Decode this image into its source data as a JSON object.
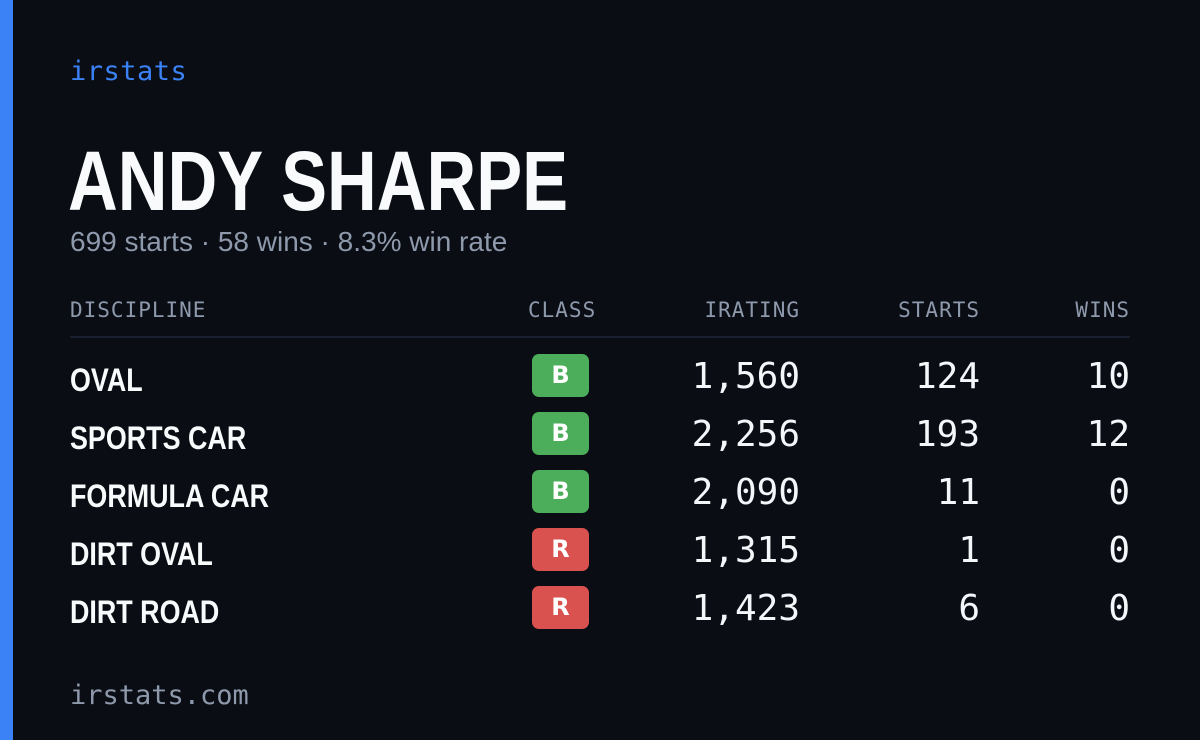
{
  "brand": "irstats",
  "player": {
    "name": "ANDY SHARPE",
    "summary": "699 starts · 58 wins · 8.3% win rate"
  },
  "table": {
    "headers": {
      "discipline": "DISCIPLINE",
      "class": "CLASS",
      "irating": "IRATING",
      "starts": "STARTS",
      "wins": "WINS"
    },
    "rows": [
      {
        "discipline": "OVAL",
        "class": "B",
        "class_color": "#4cae5a",
        "irating": "1,560",
        "starts": "124",
        "wins": "10"
      },
      {
        "discipline": "SPORTS CAR",
        "class": "B",
        "class_color": "#4cae5a",
        "irating": "2,256",
        "starts": "193",
        "wins": "12"
      },
      {
        "discipline": "FORMULA CAR",
        "class": "B",
        "class_color": "#4cae5a",
        "irating": "2,090",
        "starts": "11",
        "wins": "0"
      },
      {
        "discipline": "DIRT OVAL",
        "class": "R",
        "class_color": "#d9524f",
        "irating": "1,315",
        "starts": "1",
        "wins": "0"
      },
      {
        "discipline": "DIRT ROAD",
        "class": "R",
        "class_color": "#d9524f",
        "irating": "1,423",
        "starts": "6",
        "wins": "0"
      }
    ]
  },
  "footer": "irstats.com",
  "colors": {
    "accent": "#3b82f6",
    "background": "#0a0d14",
    "muted": "#8e99ab"
  }
}
